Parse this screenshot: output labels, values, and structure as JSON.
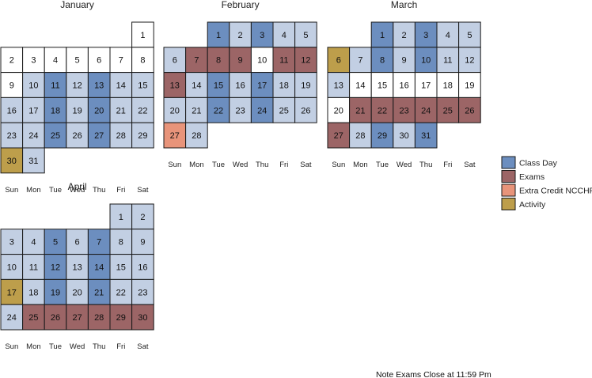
{
  "chart_data": {
    "type": "calendar-heatmap",
    "weekday_labels": [
      "Sun",
      "Mon",
      "Tue",
      "Wed",
      "Thu",
      "Fri",
      "Sat"
    ],
    "colors": {
      "class_day_dark": "#6c8ebf",
      "class_day_light": "#c2cfe3",
      "none": "#ffffff",
      "exams": "#9c6566",
      "extra_credit": "#e8947a",
      "activity": "#bd9e4b"
    },
    "legend": [
      {
        "label": "Class Day",
        "color": "#6c8ebf"
      },
      {
        "label": "Exams",
        "color": "#9c6566"
      },
      {
        "label": "Extra Credit NCCHR",
        "color": "#e8947a"
      },
      {
        "label": "Activity",
        "color": "#bd9e4b"
      }
    ],
    "note": "Note Exams Close at 11:59 Pm",
    "months": [
      {
        "name": "January",
        "first_weekday": 6,
        "days": 31,
        "categories": {
          "1": "none",
          "2": "none",
          "3": "none",
          "4": "none",
          "5": "none",
          "6": "none",
          "7": "none",
          "8": "none",
          "9": "none",
          "10": "light",
          "11": "dark",
          "12": "light",
          "13": "dark",
          "14": "light",
          "15": "light",
          "16": "light",
          "17": "light",
          "18": "dark",
          "19": "light",
          "20": "dark",
          "21": "light",
          "22": "light",
          "23": "light",
          "24": "light",
          "25": "dark",
          "26": "light",
          "27": "dark",
          "28": "light",
          "29": "light",
          "30": "activity",
          "31": "light"
        }
      },
      {
        "name": "February",
        "first_weekday": 2,
        "days": 28,
        "categories": {
          "1": "dark",
          "2": "light",
          "3": "dark",
          "4": "light",
          "5": "light",
          "6": "light",
          "7": "exams",
          "8": "exams",
          "9": "exams",
          "10": "none",
          "11": "exams",
          "12": "exams",
          "13": "exams",
          "14": "light",
          "15": "dark",
          "16": "light",
          "17": "dark",
          "18": "light",
          "19": "light",
          "20": "light",
          "21": "light",
          "22": "dark",
          "23": "light",
          "24": "dark",
          "25": "light",
          "26": "light",
          "27": "extra_credit",
          "28": "light"
        }
      },
      {
        "name": "March",
        "first_weekday": 2,
        "days": 31,
        "categories": {
          "1": "dark",
          "2": "light",
          "3": "dark",
          "4": "light",
          "5": "light",
          "6": "activity",
          "7": "light",
          "8": "dark",
          "9": "light",
          "10": "dark",
          "11": "light",
          "12": "light",
          "13": "light",
          "14": "none",
          "15": "none",
          "16": "none",
          "17": "none",
          "18": "none",
          "19": "none",
          "20": "none",
          "21": "exams",
          "22": "exams",
          "23": "exams",
          "24": "exams",
          "25": "exams",
          "26": "exams",
          "27": "exams",
          "28": "light",
          "29": "dark",
          "30": "light",
          "31": "dark"
        }
      },
      {
        "name": "April",
        "first_weekday": 5,
        "days": 30,
        "categories": {
          "1": "light",
          "2": "light",
          "3": "light",
          "4": "light",
          "5": "dark",
          "6": "light",
          "7": "dark",
          "8": "light",
          "9": "light",
          "10": "light",
          "11": "light",
          "12": "dark",
          "13": "light",
          "14": "dark",
          "15": "light",
          "16": "light",
          "17": "activity",
          "18": "light",
          "19": "dark",
          "20": "light",
          "21": "dark",
          "22": "light",
          "23": "light",
          "24": "light",
          "25": "exams",
          "26": "exams",
          "27": "exams",
          "28": "exams",
          "29": "exams",
          "30": "exams"
        }
      }
    ]
  }
}
